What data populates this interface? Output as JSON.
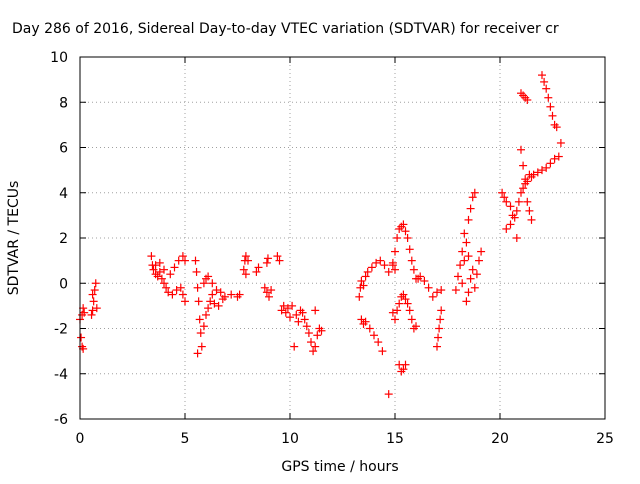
{
  "chart_data": {
    "type": "scatter",
    "title": "Day 286 of 2016, Sidereal Day-to-day VTEC variation (SDTVAR) for receiver cr",
    "xlabel": "GPS time / hours",
    "ylabel": "SDTVAR / TECUs",
    "xlim": [
      0,
      25
    ],
    "ylim": [
      -6,
      10
    ],
    "xticks": [
      0,
      5,
      10,
      15,
      20,
      25
    ],
    "yticks": [
      -6,
      -4,
      -2,
      0,
      2,
      4,
      6,
      8,
      10
    ],
    "xtick_labels": [
      "0",
      "5",
      "10",
      "15",
      "20",
      "25"
    ],
    "ytick_labels": [
      "-6",
      "-4",
      "-2",
      "0",
      "2",
      "4",
      "6",
      "8",
      "10"
    ],
    "grid": true,
    "marker": "+",
    "color": "#ff0000",
    "series": [
      {
        "points": [
          [
            0.0,
            -1.6
          ],
          [
            0.05,
            -2.4
          ],
          [
            0.1,
            -2.8
          ],
          [
            0.15,
            -2.9
          ],
          [
            0.1,
            -1.4
          ],
          [
            0.15,
            -1.1
          ],
          [
            0.2,
            -1.3
          ],
          [
            0.55,
            -1.4
          ],
          [
            0.6,
            -1.2
          ],
          [
            0.65,
            -0.8
          ],
          [
            0.7,
            -0.3
          ],
          [
            0.75,
            0.0
          ],
          [
            0.6,
            -0.5
          ],
          [
            0.8,
            -1.1
          ],
          [
            3.4,
            1.2
          ],
          [
            3.45,
            0.8
          ],
          [
            3.5,
            0.6
          ],
          [
            3.6,
            0.4
          ],
          [
            3.7,
            0.3
          ],
          [
            3.8,
            0.5
          ],
          [
            3.9,
            0.2
          ],
          [
            4.0,
            0.0
          ],
          [
            4.1,
            -0.2
          ],
          [
            4.2,
            -0.4
          ],
          [
            4.4,
            -0.5
          ],
          [
            4.6,
            -0.3
          ],
          [
            4.8,
            -0.2
          ],
          [
            4.9,
            -0.5
          ],
          [
            5.0,
            -0.8
          ],
          [
            3.6,
            0.8
          ],
          [
            3.8,
            0.9
          ],
          [
            4.0,
            0.6
          ],
          [
            4.3,
            0.4
          ],
          [
            4.5,
            0.7
          ],
          [
            4.7,
            1.0
          ],
          [
            4.9,
            1.2
          ],
          [
            5.0,
            1.0
          ],
          [
            5.5,
            1.0
          ],
          [
            5.55,
            0.5
          ],
          [
            5.6,
            -0.2
          ],
          [
            5.65,
            -0.8
          ],
          [
            5.7,
            -1.6
          ],
          [
            5.75,
            -2.2
          ],
          [
            5.8,
            -2.8
          ],
          [
            5.6,
            -3.1
          ],
          [
            5.9,
            -1.9
          ],
          [
            6.0,
            -1.4
          ],
          [
            6.1,
            -1.1
          ],
          [
            6.2,
            -0.8
          ],
          [
            6.3,
            -0.5
          ],
          [
            6.4,
            -0.9
          ],
          [
            6.6,
            -1.0
          ],
          [
            6.8,
            -0.7
          ],
          [
            5.9,
            0.0
          ],
          [
            6.0,
            0.2
          ],
          [
            6.1,
            0.3
          ],
          [
            6.3,
            0.0
          ],
          [
            6.5,
            -0.3
          ],
          [
            6.7,
            -0.4
          ],
          [
            6.9,
            -0.6
          ],
          [
            7.2,
            -0.5
          ],
          [
            7.5,
            -0.6
          ],
          [
            7.6,
            -0.5
          ],
          [
            7.8,
            0.6
          ],
          [
            7.85,
            1.0
          ],
          [
            7.9,
            1.2
          ],
          [
            8.0,
            1.0
          ],
          [
            7.9,
            0.4
          ],
          [
            8.4,
            0.5
          ],
          [
            8.5,
            0.7
          ],
          [
            8.9,
            0.9
          ],
          [
            8.95,
            1.1
          ],
          [
            8.8,
            -0.2
          ],
          [
            8.9,
            -0.4
          ],
          [
            9.0,
            -0.6
          ],
          [
            9.1,
            -0.3
          ],
          [
            9.4,
            1.2
          ],
          [
            9.5,
            1.0
          ],
          [
            9.6,
            -1.2
          ],
          [
            9.7,
            -1.0
          ],
          [
            9.8,
            -1.3
          ],
          [
            9.9,
            -1.1
          ],
          [
            10.0,
            -1.5
          ],
          [
            10.1,
            -1.0
          ],
          [
            10.2,
            -2.8
          ],
          [
            10.3,
            -1.4
          ],
          [
            10.4,
            -1.7
          ],
          [
            10.5,
            -1.2
          ],
          [
            10.6,
            -1.3
          ],
          [
            10.7,
            -1.6
          ],
          [
            10.8,
            -1.9
          ],
          [
            10.9,
            -2.2
          ],
          [
            11.0,
            -2.6
          ],
          [
            11.1,
            -3.0
          ],
          [
            11.2,
            -2.8
          ],
          [
            11.3,
            -2.3
          ],
          [
            11.4,
            -2.0
          ],
          [
            11.5,
            -2.1
          ],
          [
            11.2,
            -1.2
          ],
          [
            13.3,
            -0.6
          ],
          [
            13.35,
            -0.2
          ],
          [
            13.4,
            0.1
          ],
          [
            13.5,
            -0.1
          ],
          [
            13.6,
            0.3
          ],
          [
            13.7,
            0.5
          ],
          [
            13.9,
            0.7
          ],
          [
            14.1,
            0.9
          ],
          [
            14.3,
            1.0
          ],
          [
            14.5,
            0.8
          ],
          [
            14.7,
            0.5
          ],
          [
            14.9,
            0.9
          ],
          [
            15.0,
            0.6
          ],
          [
            13.4,
            -1.6
          ],
          [
            13.5,
            -1.8
          ],
          [
            13.6,
            -1.7
          ],
          [
            13.8,
            -2.0
          ],
          [
            14.0,
            -2.3
          ],
          [
            14.2,
            -2.6
          ],
          [
            14.4,
            -3.0
          ],
          [
            14.7,
            -4.9
          ],
          [
            14.9,
            -1.3
          ],
          [
            15.0,
            -1.6
          ],
          [
            15.1,
            -1.2
          ],
          [
            15.2,
            -0.9
          ],
          [
            15.3,
            -0.6
          ],
          [
            15.4,
            -0.5
          ],
          [
            15.5,
            -0.7
          ],
          [
            15.6,
            -0.9
          ],
          [
            15.7,
            -1.2
          ],
          [
            15.8,
            -1.6
          ],
          [
            15.9,
            -2.0
          ],
          [
            16.0,
            -1.9
          ],
          [
            15.2,
            -3.6
          ],
          [
            15.3,
            -3.9
          ],
          [
            15.4,
            -3.8
          ],
          [
            15.5,
            -3.6
          ],
          [
            14.9,
            0.8
          ],
          [
            15.0,
            1.4
          ],
          [
            15.1,
            2.0
          ],
          [
            15.2,
            2.4
          ],
          [
            15.3,
            2.5
          ],
          [
            15.4,
            2.6
          ],
          [
            15.5,
            2.3
          ],
          [
            15.6,
            2.0
          ],
          [
            15.7,
            1.5
          ],
          [
            15.8,
            1.0
          ],
          [
            15.9,
            0.6
          ],
          [
            16.0,
            0.2
          ],
          [
            16.1,
            0.2
          ],
          [
            16.2,
            0.3
          ],
          [
            16.4,
            0.1
          ],
          [
            16.6,
            -0.2
          ],
          [
            16.8,
            -0.6
          ],
          [
            17.0,
            -0.4
          ],
          [
            17.2,
            -0.3
          ],
          [
            17.0,
            -2.8
          ],
          [
            17.05,
            -2.4
          ],
          [
            17.1,
            -2.0
          ],
          [
            17.15,
            -1.6
          ],
          [
            17.2,
            -1.2
          ],
          [
            17.9,
            -0.3
          ],
          [
            18.0,
            0.3
          ],
          [
            18.1,
            0.8
          ],
          [
            18.2,
            1.4
          ],
          [
            18.3,
            1.0
          ],
          [
            18.4,
            1.8
          ],
          [
            18.5,
            1.2
          ],
          [
            18.4,
            -0.8
          ],
          [
            18.5,
            -0.4
          ],
          [
            18.6,
            0.2
          ],
          [
            18.7,
            0.6
          ],
          [
            18.8,
            -0.2
          ],
          [
            18.9,
            0.4
          ],
          [
            19.0,
            1.0
          ],
          [
            19.1,
            1.4
          ],
          [
            18.3,
            2.2
          ],
          [
            18.5,
            2.8
          ],
          [
            18.6,
            3.3
          ],
          [
            18.7,
            3.8
          ],
          [
            18.8,
            4.0
          ],
          [
            18.2,
            0.0
          ],
          [
            20.1,
            4.0
          ],
          [
            20.2,
            3.8
          ],
          [
            20.3,
            3.6
          ],
          [
            20.5,
            3.4
          ],
          [
            20.6,
            3.0
          ],
          [
            20.8,
            3.2
          ],
          [
            20.9,
            3.6
          ],
          [
            20.3,
            2.4
          ],
          [
            20.5,
            2.6
          ],
          [
            20.7,
            2.9
          ],
          [
            20.8,
            2.0
          ],
          [
            21.0,
            4.0
          ],
          [
            21.1,
            4.2
          ],
          [
            21.2,
            4.6
          ],
          [
            21.3,
            4.5
          ],
          [
            21.4,
            4.8
          ],
          [
            21.5,
            4.7
          ],
          [
            21.3,
            3.6
          ],
          [
            21.4,
            3.2
          ],
          [
            21.5,
            2.8
          ],
          [
            21.6,
            4.8
          ],
          [
            21.8,
            4.9
          ],
          [
            22.0,
            5.0
          ],
          [
            22.2,
            5.1
          ],
          [
            22.4,
            5.3
          ],
          [
            22.6,
            5.5
          ],
          [
            22.8,
            5.6
          ],
          [
            22.9,
            6.2
          ],
          [
            21.0,
            5.9
          ],
          [
            21.1,
            5.2
          ],
          [
            21.2,
            4.4
          ],
          [
            21.0,
            8.4
          ],
          [
            21.1,
            8.3
          ],
          [
            21.2,
            8.2
          ],
          [
            21.3,
            8.1
          ],
          [
            22.0,
            9.2
          ],
          [
            22.1,
            8.9
          ],
          [
            22.2,
            8.6
          ],
          [
            22.3,
            8.2
          ],
          [
            22.4,
            7.8
          ],
          [
            22.5,
            7.4
          ],
          [
            22.6,
            7.0
          ],
          [
            22.7,
            6.9
          ]
        ]
      }
    ]
  }
}
